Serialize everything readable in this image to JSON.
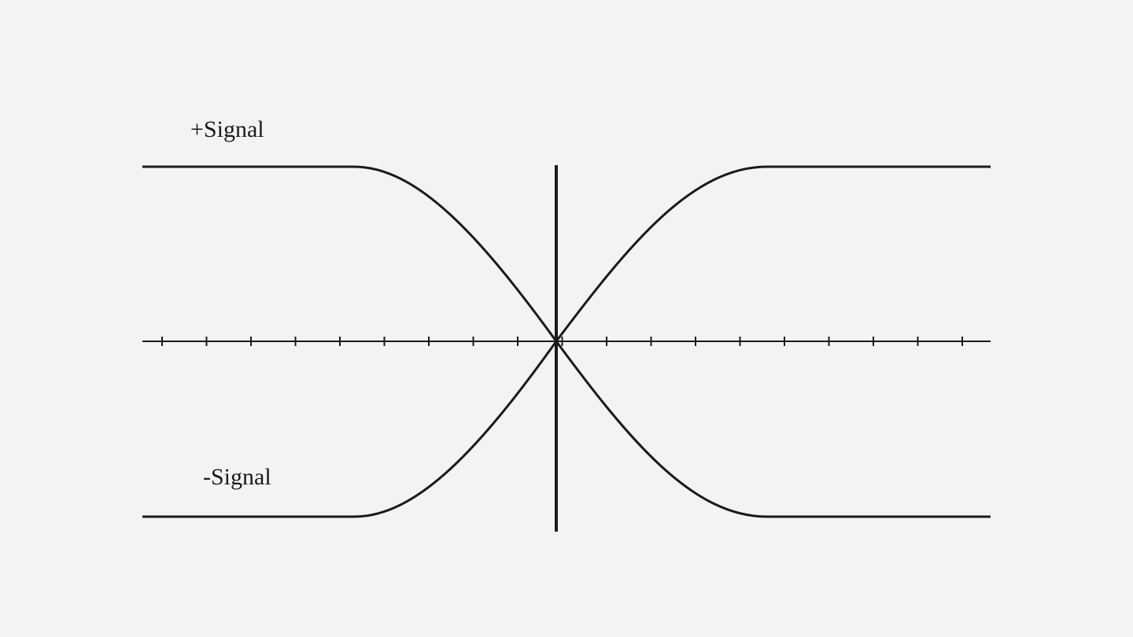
{
  "diagram": {
    "labels": {
      "positive_signal": "+Signal",
      "negative_signal": "-Signal"
    },
    "colors": {
      "background": "#f3f3f3",
      "stroke": "#1a1a1a"
    },
    "axis": {
      "tick_count": 19
    }
  }
}
